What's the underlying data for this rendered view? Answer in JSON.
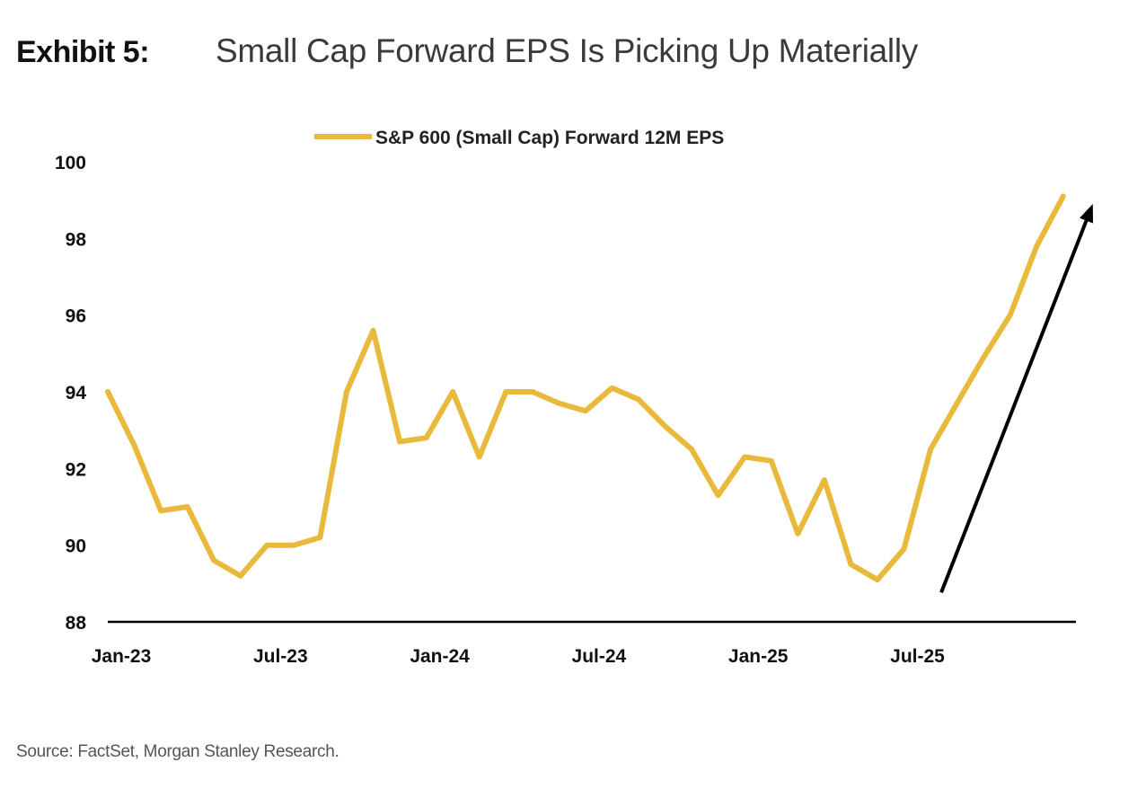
{
  "header": {
    "exhibit": "Exhibit 5:",
    "title": "Small Cap Forward EPS Is Picking Up Materially"
  },
  "source": "Source: FactSet, Morgan Stanley Research.",
  "colors": {
    "series": "#E8B93A",
    "arrow": "#000000",
    "axis": "#000000"
  },
  "chart_data": {
    "type": "line",
    "title": "Small Cap Forward EPS Is Picking Up Materially",
    "xlabel": "",
    "ylabel": "",
    "ylim": [
      88,
      100
    ],
    "yticks": [
      88,
      90,
      92,
      94,
      96,
      98,
      100
    ],
    "ytick_labels": [
      "88",
      "90",
      "92",
      "94",
      "96",
      "98",
      "100"
    ],
    "xtick_labels": [
      "Jan-23",
      "Jul-23",
      "Jan-24",
      "Jul-24",
      "Jan-25",
      "Jul-25"
    ],
    "xtick_index": [
      0,
      6,
      12,
      18,
      24,
      30
    ],
    "grid": false,
    "legend_position": "top-center",
    "x": [
      "Jan-23",
      "Feb-23",
      "Mar-23",
      "Apr-23",
      "May-23",
      "Jun-23",
      "Jul-23",
      "Aug-23",
      "Sep-23",
      "Oct-23",
      "Nov-23",
      "Dec-23",
      "Jan-24",
      "Feb-24",
      "Mar-24",
      "Apr-24",
      "May-24",
      "Jun-24",
      "Jul-24",
      "Aug-24",
      "Sep-24",
      "Oct-24",
      "Nov-24",
      "Dec-24",
      "Jan-25",
      "Feb-25",
      "Mar-25",
      "Apr-25",
      "May-25",
      "Jun-25",
      "Jul-25",
      "Aug-25",
      "Sep-25",
      "Oct-25",
      "Nov-25",
      "Dec-25",
      "Jan-26"
    ],
    "series": [
      {
        "name": "S&P 600 (Small Cap) Forward 12M EPS",
        "values": [
          94.0,
          92.6,
          90.9,
          91.0,
          89.6,
          89.2,
          90.0,
          90.0,
          90.2,
          94.0,
          95.6,
          92.7,
          92.8,
          94.0,
          92.3,
          94.0,
          94.0,
          93.7,
          93.5,
          94.1,
          93.8,
          93.1,
          92.5,
          91.3,
          92.3,
          92.2,
          90.3,
          91.7,
          89.5,
          89.1,
          89.9,
          92.5,
          93.7,
          94.9,
          96.0,
          97.8,
          99.1
        ]
      }
    ],
    "annotations": [
      {
        "type": "arrow",
        "description": "upward trend arrow",
        "from": {
          "x_index": 31,
          "y": 89.0
        },
        "to": {
          "x_index": 36,
          "y": 98.9
        }
      }
    ]
  }
}
